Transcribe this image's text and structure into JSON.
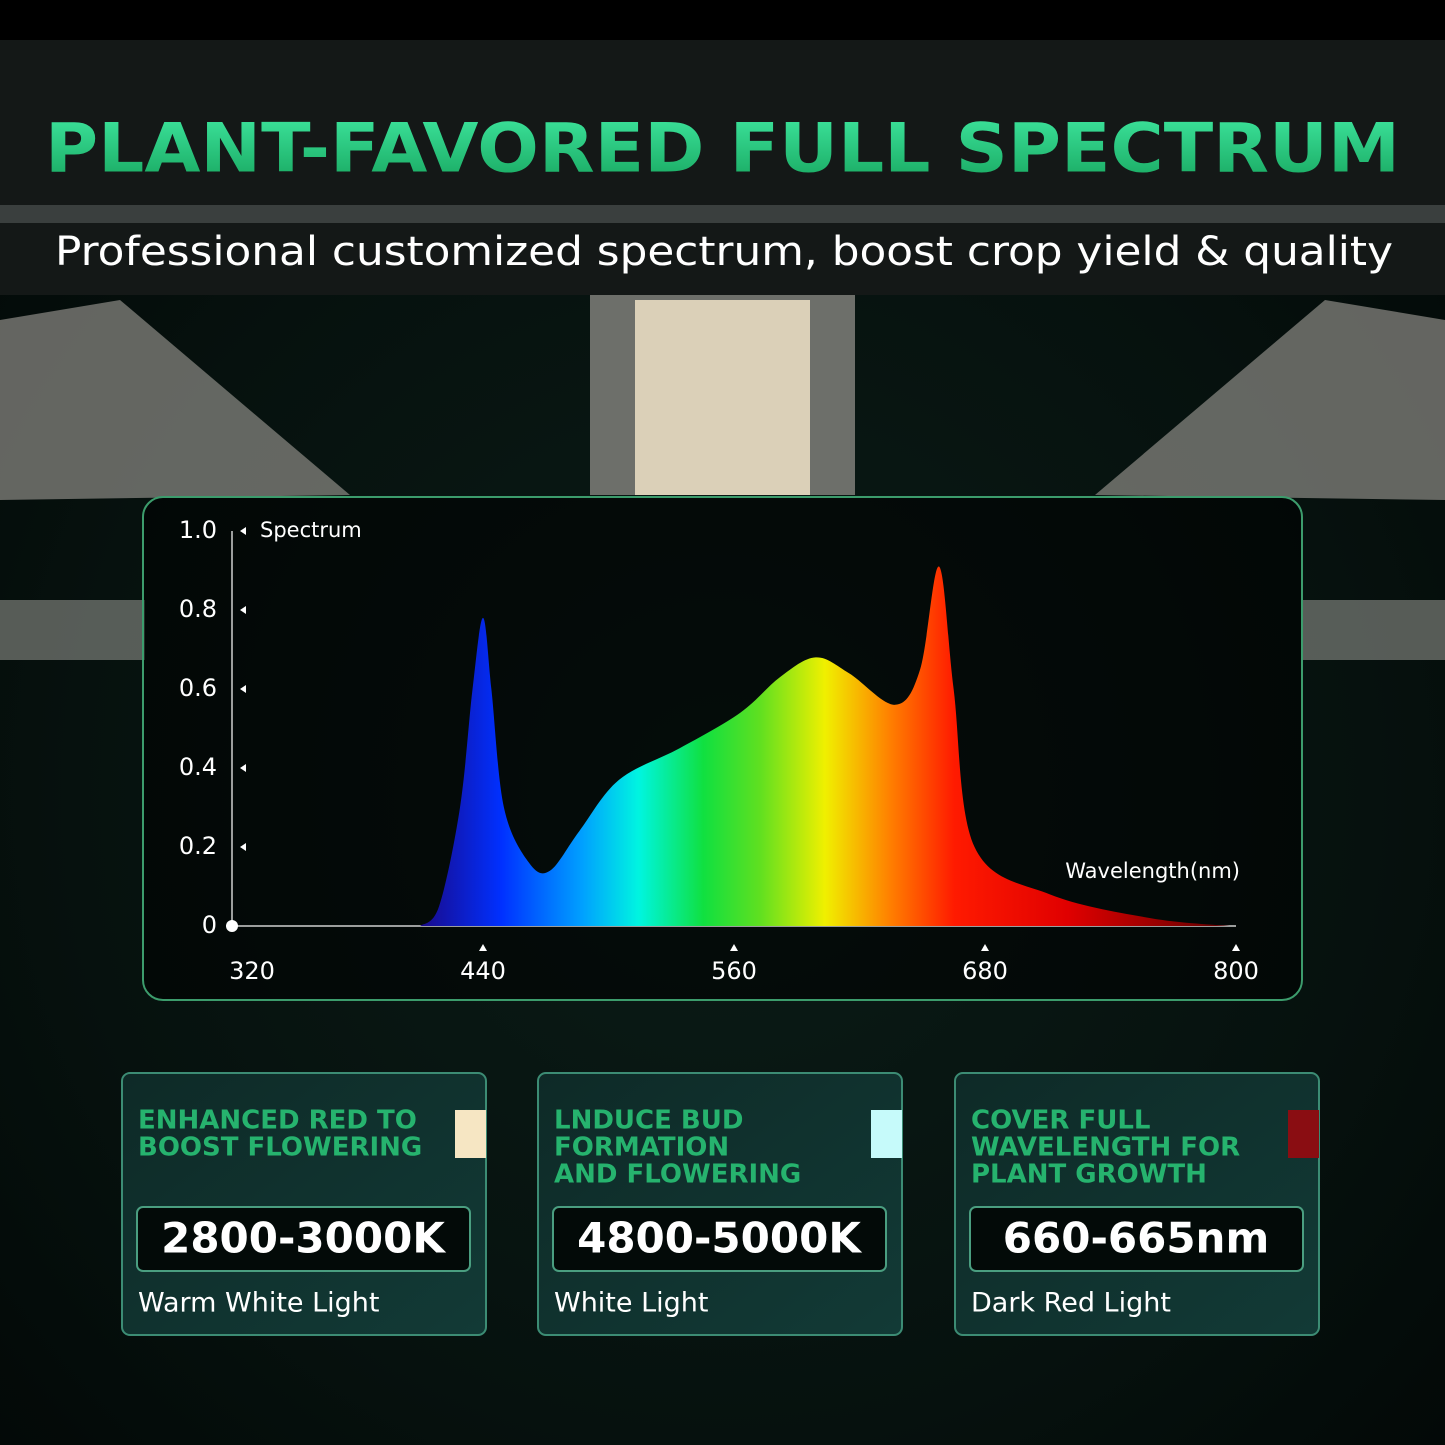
{
  "header": {
    "title": "PLANT-FAVORED FULL SPECTRUM",
    "subtitle": "Professional customized spectrum, boost crop yield & quality"
  },
  "chart_data": {
    "type": "area",
    "y_label": "Spectrum",
    "x_label": "Wavelength(nm)",
    "x": [
      410,
      419,
      429,
      435,
      440,
      444,
      450,
      462,
      472,
      486,
      505,
      534,
      563,
      582,
      599,
      615,
      637,
      649,
      658,
      665,
      675,
      711,
      759,
      797
    ],
    "values": [
      0,
      0.05,
      0.3,
      0.6,
      0.78,
      0.6,
      0.3,
      0.16,
      0.14,
      0.24,
      0.37,
      0.45,
      0.54,
      0.63,
      0.68,
      0.64,
      0.56,
      0.65,
      0.91,
      0.6,
      0.2,
      0.08,
      0.02,
      0
    ],
    "xlim": [
      320,
      800
    ],
    "xticks": [
      320,
      440,
      560,
      680,
      800
    ],
    "ylim": [
      0,
      1
    ],
    "yticks": [
      0,
      0.2,
      0.4,
      0.6,
      0.8,
      {
        "value": 1,
        "label": "1.0"
      }
    ]
  },
  "cards": [
    {
      "heading": [
        "ENHANCED RED TO",
        "BOOST FLOWERING"
      ],
      "swatch": "#f6e6c3",
      "value": "2800-3000K",
      "label": "Warm White Light"
    },
    {
      "heading": [
        "LNDUCE BUD",
        "FORMATION",
        "AND FLOWERING"
      ],
      "swatch": "#c6fafa",
      "value": "4800-5000K",
      "label": "White Light"
    },
    {
      "heading": [
        "COVER FULL",
        "WAVELENGTH FOR",
        "PLANT GROWTH"
      ],
      "swatch": "#8a0d12",
      "value": "660-665nm",
      "label": "Dark Red Light"
    }
  ]
}
